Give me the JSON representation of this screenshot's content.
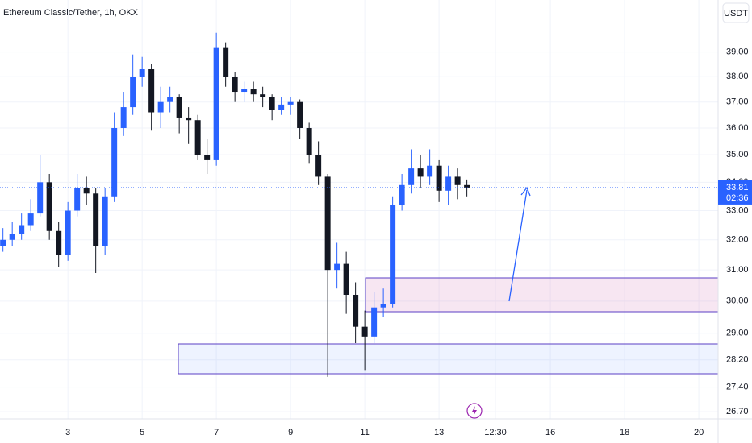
{
  "chart_data": {
    "type": "candlestick",
    "title": "Ethereum Classic/Tether, 1h, OKX",
    "currency_button": "USDT",
    "log_scale": true,
    "grid": true,
    "up_color": "#2962ff",
    "down_color": "#131722",
    "last_price": 33.81,
    "countdown": "02:36",
    "xlim": [
      1.17,
      20.52
    ],
    "xticks": [
      {
        "value": 3,
        "label": "3"
      },
      {
        "value": 5,
        "label": "5"
      },
      {
        "value": 7,
        "label": "7"
      },
      {
        "value": 9,
        "label": "9"
      },
      {
        "value": 11,
        "label": "11"
      },
      {
        "value": 13,
        "label": "13"
      },
      {
        "value": 14.52,
        "label": "12:30"
      },
      {
        "value": 16,
        "label": "16"
      },
      {
        "value": 18,
        "label": "18"
      },
      {
        "value": 20,
        "label": "20"
      }
    ],
    "ylim": [
      26.5,
      41.2
    ],
    "yticks": [
      {
        "value": 39,
        "label": "39.00"
      },
      {
        "value": 38,
        "label": "38.00"
      },
      {
        "value": 37,
        "label": "37.00"
      },
      {
        "value": 36,
        "label": "36.00"
      },
      {
        "value": 35,
        "label": "35.00"
      },
      {
        "value": 34,
        "label": "34.00"
      },
      {
        "value": 33,
        "label": "33.00"
      },
      {
        "value": 32,
        "label": "32.00"
      },
      {
        "value": 31,
        "label": "31.00"
      },
      {
        "value": 30,
        "label": "30.00"
      },
      {
        "value": 29,
        "label": "29.00"
      },
      {
        "value": 28.2,
        "label": "28.20"
      },
      {
        "value": 27.4,
        "label": "27.40"
      },
      {
        "value": 26.7,
        "label": "26.70"
      }
    ],
    "x": [
      1.25,
      1.5,
      1.75,
      2,
      2.25,
      2.5,
      2.75,
      3,
      3.25,
      3.5,
      3.75,
      4,
      4.25,
      4.5,
      4.75,
      5,
      5.25,
      5.5,
      5.75,
      6,
      6.25,
      6.5,
      6.75,
      7,
      7.25,
      7.5,
      7.75,
      8,
      8.25,
      8.5,
      8.75,
      9,
      9.25,
      9.5,
      9.75,
      10,
      10.25,
      10.5,
      10.75,
      11,
      11.25,
      11.5,
      11.75,
      12,
      12.25,
      12.5,
      12.75,
      13,
      13.25,
      13.5,
      13.75
    ],
    "open": [
      31.8,
      32.0,
      32.2,
      32.5,
      32.9,
      34.0,
      32.3,
      31.5,
      33.0,
      33.8,
      33.6,
      31.8,
      33.5,
      36.0,
      36.8,
      38.0,
      38.3,
      36.6,
      37.0,
      37.2,
      36.4,
      36.3,
      35.0,
      34.8,
      39.2,
      38.0,
      37.4,
      37.5,
      37.3,
      37.2,
      36.7,
      36.9,
      37.0,
      36.0,
      35.0,
      34.2,
      31.0,
      31.2,
      30.2,
      29.2,
      28.9,
      29.8,
      29.9,
      33.2,
      33.9,
      34.5,
      34.2,
      34.6,
      33.7,
      34.2,
      33.9
    ],
    "high": [
      32.4,
      32.6,
      32.9,
      33.4,
      35.0,
      34.3,
      32.6,
      33.3,
      34.3,
      34.2,
      33.8,
      33.8,
      36.6,
      37.4,
      38.9,
      38.8,
      38.5,
      37.6,
      37.6,
      37.3,
      36.8,
      36.5,
      35.6,
      39.8,
      39.4,
      38.2,
      37.8,
      37.8,
      37.6,
      37.3,
      37.2,
      37.2,
      37.1,
      36.2,
      35.5,
      34.3,
      31.9,
      31.6,
      30.6,
      29.7,
      30.3,
      30.4,
      33.5,
      34.3,
      35.2,
      35.0,
      35.2,
      34.8,
      34.6,
      34.5,
      34.1
    ],
    "low": [
      31.6,
      31.8,
      32.0,
      32.3,
      32.8,
      32.0,
      31.1,
      31.3,
      32.8,
      33.2,
      30.9,
      31.5,
      33.3,
      35.7,
      36.5,
      37.6,
      35.9,
      36.0,
      36.6,
      35.8,
      35.4,
      34.8,
      34.3,
      34.6,
      37.6,
      37.0,
      37.0,
      37.0,
      36.8,
      36.3,
      36.5,
      36.5,
      35.6,
      34.7,
      33.9,
      27.7,
      30.4,
      29.6,
      28.7,
      27.9,
      28.7,
      29.5,
      29.8,
      33.0,
      33.6,
      33.8,
      33.9,
      33.3,
      33.2,
      33.4,
      33.5
    ],
    "close": [
      32.0,
      32.2,
      32.5,
      32.9,
      34.0,
      32.3,
      31.5,
      33.0,
      33.8,
      33.6,
      31.8,
      33.5,
      36.0,
      36.8,
      38.0,
      38.3,
      36.6,
      37.0,
      37.2,
      36.4,
      36.3,
      35.0,
      34.8,
      39.2,
      38.0,
      37.4,
      37.5,
      37.3,
      37.2,
      36.7,
      36.9,
      37.0,
      36.0,
      35.0,
      34.2,
      31.0,
      31.2,
      30.2,
      29.2,
      28.9,
      29.8,
      29.9,
      33.2,
      33.9,
      34.5,
      34.2,
      34.6,
      33.7,
      34.2,
      33.9,
      33.81
    ]
  }
}
